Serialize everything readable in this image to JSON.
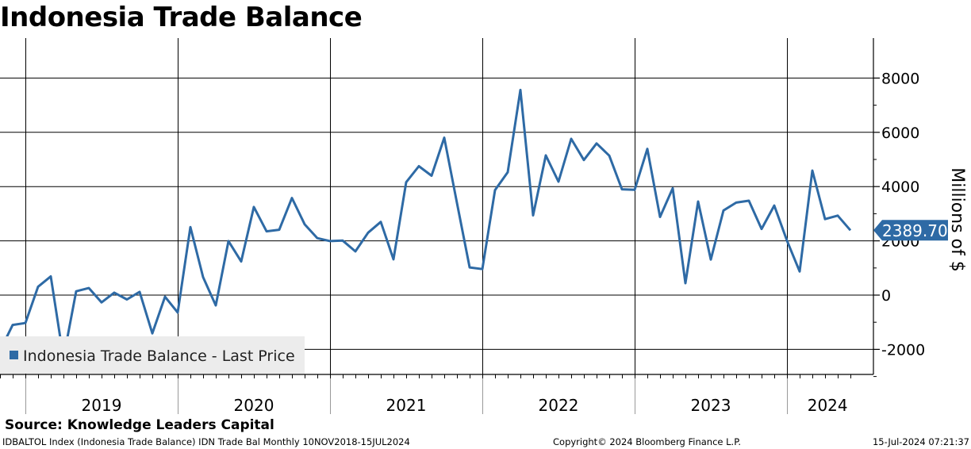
{
  "header": {
    "title": "Indonesia Trade Balance"
  },
  "footer": {
    "source": "Source: Knowledge Leaders Capital",
    "left": "IDBALTOL Index (Indonesia Trade Balance) IDN Trade Bal  Monthly 10NOV2018-15JUL2024",
    "center": "Copyright© 2024 Bloomberg Finance L.P.",
    "right": "15-Jul-2024 07:21:37"
  },
  "chart_data": {
    "type": "line",
    "ylabel": "Millions of $",
    "ylim": [
      -3500,
      8500
    ],
    "yticks": [
      8000,
      6000,
      4000,
      2000,
      0,
      -2000
    ],
    "ytick_labels": [
      "8000",
      "6000",
      "4000",
      "2000",
      "0",
      "-2000"
    ],
    "year_labels": [
      "2019",
      "2020",
      "2021",
      "2022",
      "2023",
      "2024"
    ],
    "grid": true,
    "legend": {
      "position": "bottom-left",
      "label": "Indonesia Trade Balance - Last Price"
    },
    "line_color": "#2e6aa5",
    "last_value_label": "2389.70",
    "series": [
      {
        "name": "Indonesia Trade Balance - Last Price",
        "x": [
          "2018-11",
          "2018-12",
          "2019-01",
          "2019-02",
          "2019-03",
          "2019-04",
          "2019-05",
          "2019-06",
          "2019-07",
          "2019-08",
          "2019-09",
          "2019-10",
          "2019-11",
          "2019-12",
          "2020-01",
          "2020-02",
          "2020-03",
          "2020-04",
          "2020-05",
          "2020-06",
          "2020-07",
          "2020-08",
          "2020-09",
          "2020-10",
          "2020-11",
          "2020-12",
          "2021-01",
          "2021-02",
          "2021-03",
          "2021-04",
          "2021-05",
          "2021-06",
          "2021-07",
          "2021-08",
          "2021-09",
          "2021-10",
          "2021-11",
          "2021-12",
          "2022-01",
          "2022-02",
          "2022-03",
          "2022-04",
          "2022-05",
          "2022-06",
          "2022-07",
          "2022-08",
          "2022-09",
          "2022-10",
          "2022-11",
          "2022-12",
          "2023-01",
          "2023-02",
          "2023-03",
          "2023-04",
          "2023-05",
          "2023-06",
          "2023-07",
          "2023-08",
          "2023-09",
          "2023-10",
          "2023-11",
          "2023-12",
          "2024-01",
          "2024-02",
          "2024-03",
          "2024-04",
          "2024-05",
          "2024-06"
        ],
        "values": [
          -2050,
          -1100,
          -1030,
          310,
          690,
          -2330,
          140,
          260,
          -270,
          90,
          -160,
          120,
          -1410,
          -60,
          -640,
          2510,
          660,
          -380,
          1990,
          1240,
          3250,
          2350,
          2410,
          3580,
          2610,
          2100,
          1990,
          2010,
          1610,
          2300,
          2700,
          1320,
          4160,
          4750,
          4400,
          5800,
          3400,
          1020,
          960,
          3870,
          4530,
          7560,
          2940,
          5150,
          4180,
          5760,
          4980,
          5590,
          5140,
          3900,
          3880,
          5390,
          2880,
          3940,
          440,
          3450,
          1310,
          3120,
          3410,
          3480,
          2440,
          3300,
          2010,
          870,
          4590,
          2800,
          2930,
          2390
        ]
      }
    ]
  }
}
